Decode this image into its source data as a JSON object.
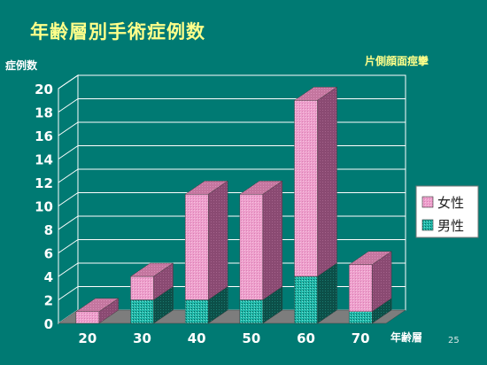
{
  "slide": {
    "title": "年齢層別手術症例数",
    "subtitle": "片側顔面痙攣",
    "page_number": "25"
  },
  "colors": {
    "background": "#007a73",
    "title": "#ffff8a",
    "female": "#ee9fcc",
    "male": "#1eb7a8",
    "floor": "#7d7d7d"
  },
  "chart_data": {
    "type": "bar",
    "stacked": true,
    "three_d": true,
    "categories": [
      "20",
      "30",
      "40",
      "50",
      "60",
      "70"
    ],
    "series": [
      {
        "name": "男性",
        "values": [
          0,
          2,
          2,
          2,
          4,
          1
        ]
      },
      {
        "name": "女性",
        "values": [
          1,
          2,
          9,
          9,
          15,
          4
        ]
      }
    ],
    "ylabel": "症例数",
    "xlabel": "年齢層",
    "ylim": [
      0,
      20
    ],
    "yticks": [
      0,
      2,
      4,
      6,
      8,
      10,
      12,
      14,
      16,
      18,
      20
    ],
    "grid": true,
    "legend_position": "right",
    "legend_order": [
      "女性",
      "男性"
    ]
  }
}
